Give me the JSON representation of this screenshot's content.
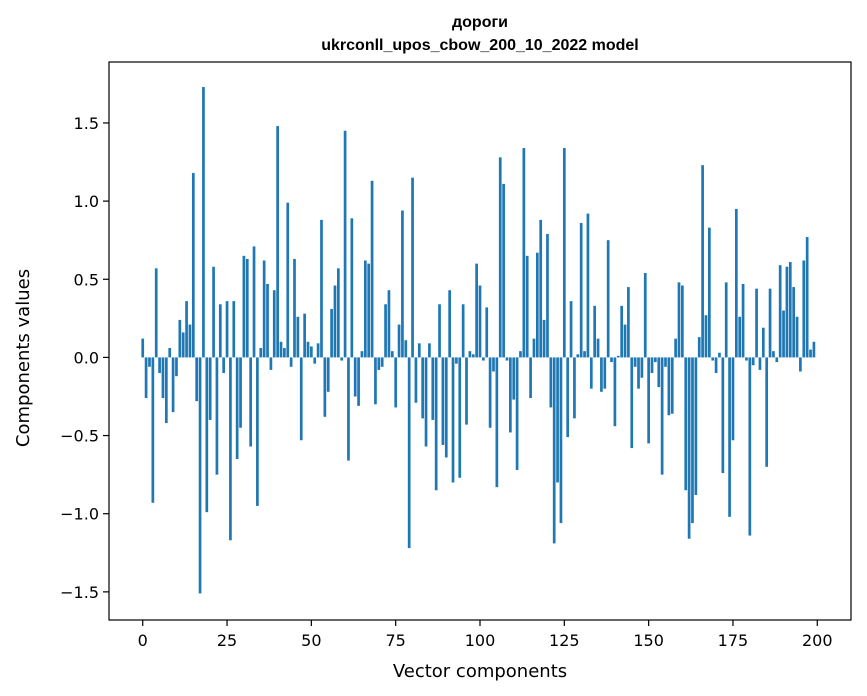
{
  "chart_data": {
    "type": "bar",
    "title": "дороги",
    "subtitle": "ukrconll_upos_cbow_200_10_2022 model",
    "xlabel": "Vector components",
    "ylabel": "Components values",
    "xlim": [
      -10,
      210
    ],
    "ylim": [
      -1.68,
      1.89
    ],
    "xticks": [
      0,
      25,
      50,
      75,
      100,
      125,
      150,
      175,
      200
    ],
    "yticks": [
      -1.5,
      -1.0,
      -0.5,
      0.0,
      0.5,
      1.0,
      1.5
    ],
    "ytick_labels": [
      "−1.5",
      "−1.0",
      "−0.5",
      "0.0",
      "0.5",
      "1.0",
      "1.5"
    ],
    "color": "#1f77b4",
    "x": [
      0,
      1,
      2,
      3,
      4,
      5,
      6,
      7,
      8,
      9,
      10,
      11,
      12,
      13,
      14,
      15,
      16,
      17,
      18,
      19,
      20,
      21,
      22,
      23,
      24,
      25,
      26,
      27,
      28,
      29,
      30,
      31,
      32,
      33,
      34,
      35,
      36,
      37,
      38,
      39,
      40,
      41,
      42,
      43,
      44,
      45,
      46,
      47,
      48,
      49,
      50,
      51,
      52,
      53,
      54,
      55,
      56,
      57,
      58,
      59,
      60,
      61,
      62,
      63,
      64,
      65,
      66,
      67,
      68,
      69,
      70,
      71,
      72,
      73,
      74,
      75,
      76,
      77,
      78,
      79,
      80,
      81,
      82,
      83,
      84,
      85,
      86,
      87,
      88,
      89,
      90,
      91,
      92,
      93,
      94,
      95,
      96,
      97,
      98,
      99,
      100,
      101,
      102,
      103,
      104,
      105,
      106,
      107,
      108,
      109,
      110,
      111,
      112,
      113,
      114,
      115,
      116,
      117,
      118,
      119,
      120,
      121,
      122,
      123,
      124,
      125,
      126,
      127,
      128,
      129,
      130,
      131,
      132,
      133,
      134,
      135,
      136,
      137,
      138,
      139,
      140,
      141,
      142,
      143,
      144,
      145,
      146,
      147,
      148,
      149,
      150,
      151,
      152,
      153,
      154,
      155,
      156,
      157,
      158,
      159,
      160,
      161,
      162,
      163,
      164,
      165,
      166,
      167,
      168,
      169,
      170,
      171,
      172,
      173,
      174,
      175,
      176,
      177,
      178,
      179,
      180,
      181,
      182,
      183,
      184,
      185,
      186,
      187,
      188,
      189,
      190,
      191,
      192,
      193,
      194,
      195,
      196,
      197,
      198,
      199
    ],
    "values": [
      0.12,
      -0.26,
      -0.06,
      -0.93,
      0.57,
      -0.1,
      -0.26,
      -0.42,
      0.06,
      -0.35,
      -0.12,
      0.24,
      0.16,
      0.36,
      0.21,
      1.18,
      -0.28,
      -1.51,
      1.73,
      -0.99,
      -0.4,
      0.58,
      -0.75,
      0.34,
      -0.1,
      0.36,
      -1.17,
      0.36,
      -0.65,
      -0.45,
      0.65,
      0.63,
      -0.57,
      0.71,
      -0.95,
      0.06,
      0.62,
      0.47,
      -0.08,
      0.43,
      1.48,
      0.1,
      0.06,
      0.99,
      -0.06,
      0.63,
      0.26,
      -0.53,
      0.28,
      0.1,
      0.07,
      -0.04,
      0.09,
      0.88,
      -0.38,
      -0.22,
      0.31,
      0.46,
      0.57,
      -0.02,
      1.45,
      -0.66,
      0.89,
      -0.25,
      -0.31,
      0.04,
      0.62,
      0.6,
      1.13,
      -0.3,
      -0.08,
      -0.06,
      0.34,
      0.43,
      0.04,
      -0.32,
      0.21,
      0.94,
      0.11,
      -1.22,
      1.15,
      -0.29,
      0.09,
      -0.39,
      -0.57,
      0.09,
      -0.4,
      -0.85,
      0.34,
      -0.56,
      -0.64,
      0.43,
      -0.8,
      -0.04,
      -0.77,
      0.34,
      -0.43,
      0.04,
      0.02,
      0.6,
      0.46,
      -0.02,
      0.32,
      -0.45,
      -0.09,
      -0.83,
      1.28,
      1.11,
      -0.02,
      -0.48,
      -0.27,
      -0.72,
      0.04,
      1.34,
      0.65,
      -0.26,
      0.12,
      0.67,
      0.88,
      0.24,
      0.79,
      -0.32,
      -1.19,
      -0.8,
      -1.06,
      1.34,
      -0.51,
      0.36,
      -0.39,
      0.02,
      0.86,
      0.04,
      0.92,
      -0.2,
      0.33,
      0.12,
      -0.22,
      -0.2,
      0.75,
      -0.03,
      -0.44,
      0.01,
      0.33,
      0.21,
      0.45,
      -0.58,
      -0.06,
      -0.2,
      -0.13,
      0.54,
      -0.55,
      -0.1,
      -0.03,
      -0.19,
      -0.75,
      -0.06,
      -0.37,
      -0.36,
      0.12,
      0.48,
      0.46,
      -0.85,
      -1.16,
      -1.06,
      -0.88,
      0.13,
      1.23,
      0.27,
      0.83,
      -0.02,
      -0.1,
      0.03,
      -0.74,
      0.48,
      -1.02,
      -0.53,
      0.95,
      0.26,
      0.47,
      -0.02,
      -1.14,
      -0.05,
      0.44,
      -0.08,
      0.19,
      -0.7,
      0.44,
      0.04,
      -0.03,
      0.59,
      0.3,
      0.58,
      0.61,
      0.45,
      0.26,
      -0.09,
      0.62,
      0.77,
      0.05,
      0.1
    ]
  }
}
